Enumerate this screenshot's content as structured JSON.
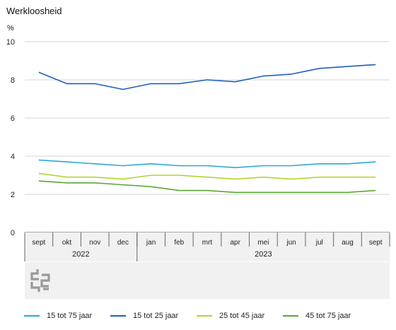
{
  "chart_data": {
    "type": "line",
    "title": "Werkloosheid",
    "ylabel": "%",
    "ylim": [
      0,
      10
    ],
    "yticks": [
      0,
      2,
      4,
      6,
      8,
      10
    ],
    "grid": true,
    "legend_position": "bottom",
    "categories": [
      "sept",
      "okt",
      "nov",
      "dec",
      "jan",
      "feb",
      "mrt",
      "apr",
      "mei",
      "jun",
      "jul",
      "aug",
      "sept"
    ],
    "year_groups": [
      {
        "label": "2022",
        "start": 0,
        "end": 3
      },
      {
        "label": "2023",
        "start": 4,
        "end": 12
      }
    ],
    "series": [
      {
        "name": "15 tot 75 jaar",
        "color": "#2aa7d8",
        "values": [
          3.8,
          3.7,
          3.6,
          3.5,
          3.6,
          3.5,
          3.5,
          3.4,
          3.5,
          3.5,
          3.6,
          3.6,
          3.7
        ]
      },
      {
        "name": "15 tot 25 jaar",
        "color": "#1f5fbf",
        "values": [
          8.4,
          7.8,
          7.8,
          7.5,
          7.8,
          7.8,
          8.0,
          7.9,
          8.2,
          8.3,
          8.6,
          8.7,
          8.8
        ]
      },
      {
        "name": "25 tot 45 jaar",
        "color": "#b4d334",
        "values": [
          3.1,
          2.9,
          2.9,
          2.8,
          3.0,
          3.0,
          2.9,
          2.8,
          2.9,
          2.8,
          2.9,
          2.9,
          2.9
        ]
      },
      {
        "name": "45 tot 75 jaar",
        "color": "#5aa832",
        "values": [
          2.7,
          2.6,
          2.6,
          2.5,
          2.4,
          2.2,
          2.2,
          2.1,
          2.1,
          2.1,
          2.1,
          2.1,
          2.2
        ]
      }
    ]
  },
  "logo": {
    "icon": "cbs-logo-icon"
  }
}
